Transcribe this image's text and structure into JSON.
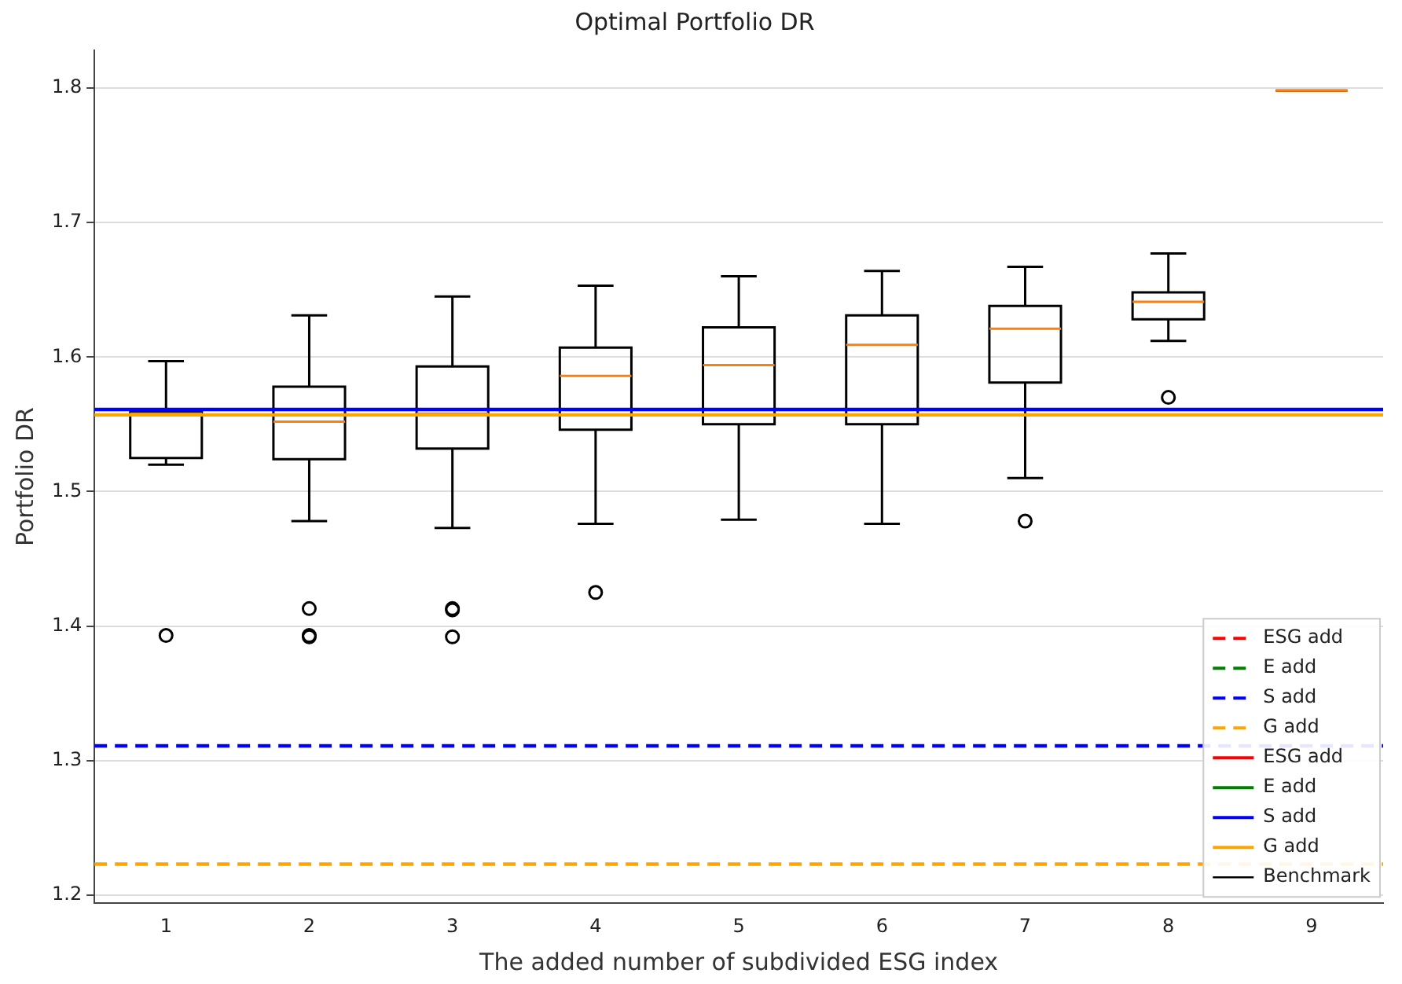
{
  "chart_data": {
    "type": "box",
    "title": "Optimal Portfolio DR",
    "xlabel": "The added number of subdivided ESG index",
    "ylabel": "Portfolio DR",
    "categories": [
      "1",
      "2",
      "3",
      "4",
      "5",
      "6",
      "7",
      "8",
      "9"
    ],
    "boxes": [
      {
        "low": 1.52,
        "q1": 1.525,
        "median": 1.558,
        "q3": 1.559,
        "high": 1.597,
        "outliers": [
          1.393
        ]
      },
      {
        "low": 1.478,
        "q1": 1.524,
        "median": 1.552,
        "q3": 1.578,
        "high": 1.631,
        "outliers": [
          1.413,
          1.393,
          1.392
        ]
      },
      {
        "low": 1.473,
        "q1": 1.532,
        "median": 1.558,
        "q3": 1.593,
        "high": 1.645,
        "outliers": [
          1.413,
          1.412,
          1.392
        ]
      },
      {
        "low": 1.476,
        "q1": 1.546,
        "median": 1.586,
        "q3": 1.607,
        "high": 1.653,
        "outliers": [
          1.425
        ]
      },
      {
        "low": 1.479,
        "q1": 1.55,
        "median": 1.594,
        "q3": 1.622,
        "high": 1.66
      },
      {
        "low": 1.476,
        "q1": 1.55,
        "median": 1.609,
        "q3": 1.631,
        "high": 1.664
      },
      {
        "low": 1.51,
        "q1": 1.581,
        "median": 1.621,
        "q3": 1.638,
        "high": 1.667,
        "outliers": [
          1.478
        ]
      },
      {
        "low": 1.612,
        "q1": 1.628,
        "median": 1.641,
        "q3": 1.648,
        "high": 1.677,
        "outliers": [
          1.57
        ]
      },
      {
        "low": 1.798,
        "q1": 1.798,
        "median": 1.798,
        "q3": 1.798,
        "high": 1.798
      }
    ],
    "ylim": [
      1.194,
      1.828
    ],
    "yticks": [
      1.2,
      1.3,
      1.4,
      1.5,
      1.6,
      1.7,
      1.8
    ],
    "grid": "y",
    "legend": "bottom right",
    "ref_lines": [
      {
        "axis": "y",
        "value": null,
        "label": "ESG add",
        "color": "#ff0000",
        "line_style": "dashed"
      },
      {
        "axis": "y",
        "value": null,
        "label": "E add",
        "color": "#008000",
        "line_style": "dashed"
      },
      {
        "axis": "y",
        "value": 1.311,
        "label": "S add",
        "color": "#0000ff",
        "line_style": "dashed"
      },
      {
        "axis": "y",
        "value": 1.223,
        "label": "G add",
        "color": "#ffa500",
        "line_style": "dashed"
      },
      {
        "axis": "y",
        "value": null,
        "label": "ESG add",
        "color": "#ff0000",
        "line_style": "solid"
      },
      {
        "axis": "y",
        "value": null,
        "label": "E add",
        "color": "#008000",
        "line_style": "solid"
      },
      {
        "axis": "y",
        "value": 1.561,
        "label": "S add",
        "color": "#0000ff",
        "line_style": "solid"
      },
      {
        "axis": "y",
        "value": 1.557,
        "label": "G add",
        "color": "#ffa500",
        "line_style": "solid"
      },
      {
        "axis": "y",
        "value": null,
        "label": "Benchmark",
        "color": "#000000",
        "line_style": "solid"
      }
    ]
  }
}
